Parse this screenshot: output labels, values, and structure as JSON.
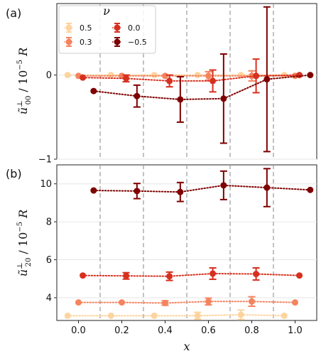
{
  "chart_data": [
    {
      "type": "scatter",
      "panel_label": "(a)",
      "ylabel": "ũ⊥00 / 10⁻⁵ R",
      "xlim": [
        -0.1,
        1.1
      ],
      "ylim": [
        -1.0,
        0.85
      ],
      "yticks": [
        -1,
        0
      ],
      "legend": {
        "title": "ν",
        "placement": "top-left"
      },
      "grid": true,
      "dividers": [
        0.1,
        0.3,
        0.5,
        0.7,
        0.9
      ],
      "series": [
        {
          "name": "0.5",
          "color": "#fdd49e",
          "points": [
            {
              "x": -0.05,
              "y": 0.0,
              "err": 0.0
            },
            {
              "x": 0.15,
              "y": 0.0,
              "err": 0.0
            },
            {
              "x": 0.35,
              "y": 0.0,
              "err": 0.0
            },
            {
              "x": 0.55,
              "y": 0.0,
              "err": 0.0
            },
            {
              "x": 0.75,
              "y": 0.0,
              "err": 0.0
            },
            {
              "x": 0.95,
              "y": 0.0,
              "err": 0.0
            }
          ]
        },
        {
          "name": "0.3",
          "color": "#f4845e",
          "points": [
            {
              "x": 0.0,
              "y": -0.01,
              "err": 0.0
            },
            {
              "x": 0.2,
              "y": -0.01,
              "err": 0.0
            },
            {
              "x": 0.4,
              "y": -0.01,
              "err": 0.0
            },
            {
              "x": 0.6,
              "y": -0.01,
              "err": 0.05
            },
            {
              "x": 0.8,
              "y": -0.01,
              "err": 0.06
            },
            {
              "x": 1.0,
              "y": -0.01,
              "err": 0.0
            }
          ]
        },
        {
          "name": "0.0",
          "color": "#d7301f",
          "points": [
            {
              "x": 0.02,
              "y": -0.03,
              "err": 0.0
            },
            {
              "x": 0.22,
              "y": -0.04,
              "err": 0.04
            },
            {
              "x": 0.42,
              "y": -0.07,
              "err": 0.07
            },
            {
              "x": 0.62,
              "y": -0.07,
              "err": 0.13
            },
            {
              "x": 0.82,
              "y": -0.01,
              "err": 0.2
            },
            {
              "x": 1.02,
              "y": 0.0,
              "err": 0.0
            }
          ]
        },
        {
          "name": "−0.5",
          "color": "#7f0000",
          "points": [
            {
              "x": 0.07,
              "y": -0.19,
              "err": 0.0
            },
            {
              "x": 0.27,
              "y": -0.25,
              "err": 0.13
            },
            {
              "x": 0.47,
              "y": -0.29,
              "err": 0.27
            },
            {
              "x": 0.67,
              "y": -0.28,
              "err": 0.53
            },
            {
              "x": 0.87,
              "y": -0.05,
              "err": 0.86
            },
            {
              "x": 1.07,
              "y": 0.0,
              "err": 0.0
            }
          ]
        }
      ]
    },
    {
      "type": "scatter",
      "panel_label": "(b)",
      "xlabel": "x",
      "ylabel": "ũ⊥20 / 10⁻⁵ R",
      "xlim": [
        -0.1,
        1.1
      ],
      "ylim": [
        2.8,
        11.0
      ],
      "yticks": [
        4,
        6,
        8,
        10
      ],
      "xticks": [
        0.0,
        0.2,
        0.4,
        0.6,
        0.8,
        1.0
      ],
      "xtick_labels": [
        "0.0",
        "0.2",
        "0.4",
        "0.6",
        "0.8",
        "1.0"
      ],
      "grid": true,
      "dividers": [
        0.1,
        0.3,
        0.5,
        0.7,
        0.9
      ],
      "series": [
        {
          "name": "0.5",
          "color": "#fdd49e",
          "points": [
            {
              "x": -0.05,
              "y": 3.05,
              "err": 0.0
            },
            {
              "x": 0.15,
              "y": 3.05,
              "err": 0.0
            },
            {
              "x": 0.35,
              "y": 3.05,
              "err": 0.0
            },
            {
              "x": 0.55,
              "y": 3.05,
              "err": 0.18
            },
            {
              "x": 0.75,
              "y": 3.1,
              "err": 0.25
            },
            {
              "x": 0.95,
              "y": 3.05,
              "err": 0.0
            }
          ]
        },
        {
          "name": "0.3",
          "color": "#f4845e",
          "points": [
            {
              "x": 0.0,
              "y": 3.75,
              "err": 0.0
            },
            {
              "x": 0.2,
              "y": 3.75,
              "err": 0.0
            },
            {
              "x": 0.4,
              "y": 3.72,
              "err": 0.12
            },
            {
              "x": 0.6,
              "y": 3.8,
              "err": 0.18
            },
            {
              "x": 0.8,
              "y": 3.8,
              "err": 0.25
            },
            {
              "x": 1.0,
              "y": 3.75,
              "err": 0.0
            }
          ]
        },
        {
          "name": "0.0",
          "color": "#d7301f",
          "points": [
            {
              "x": 0.02,
              "y": 5.17,
              "err": 0.0
            },
            {
              "x": 0.22,
              "y": 5.15,
              "err": 0.17
            },
            {
              "x": 0.42,
              "y": 5.13,
              "err": 0.22
            },
            {
              "x": 0.62,
              "y": 5.27,
              "err": 0.3
            },
            {
              "x": 0.82,
              "y": 5.25,
              "err": 0.32
            },
            {
              "x": 1.02,
              "y": 5.17,
              "err": 0.0
            }
          ]
        },
        {
          "name": "−0.5",
          "color": "#7f0000",
          "points": [
            {
              "x": 0.07,
              "y": 9.65,
              "err": 0.0
            },
            {
              "x": 0.27,
              "y": 9.62,
              "err": 0.4
            },
            {
              "x": 0.47,
              "y": 9.57,
              "err": 0.5
            },
            {
              "x": 0.67,
              "y": 9.92,
              "err": 0.75
            },
            {
              "x": 0.87,
              "y": 9.8,
              "err": 1.0
            },
            {
              "x": 1.07,
              "y": 9.68,
              "err": 0.0
            }
          ]
        }
      ]
    }
  ]
}
